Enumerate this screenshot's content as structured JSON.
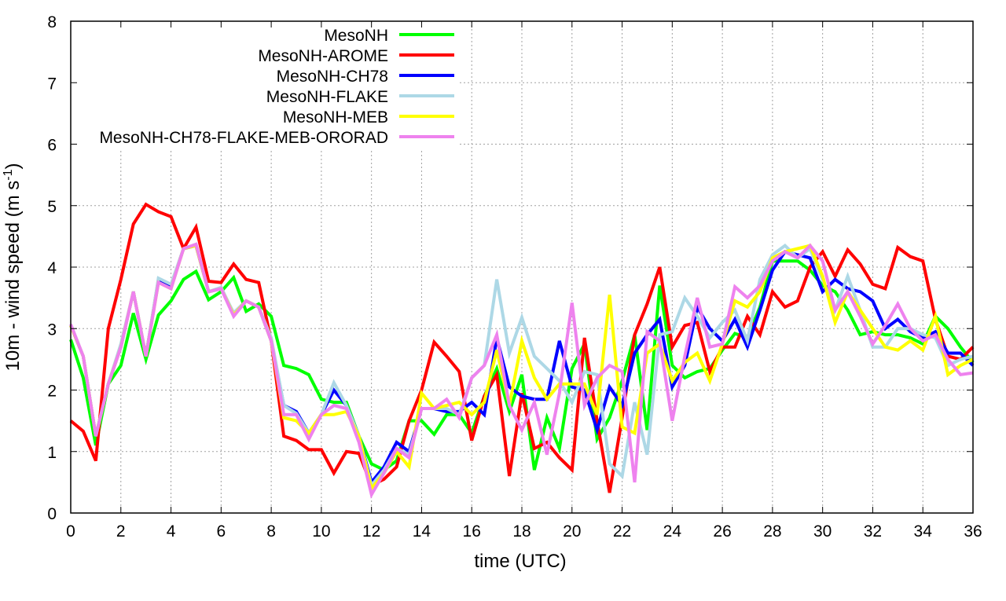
{
  "chart_data": {
    "type": "line",
    "title": "",
    "xlabel": "time (UTC)",
    "ylabel": "10m - wind speed  (m s",
    "ylabel_sup": "-1",
    "ylabel_close": ")",
    "xlim": [
      0,
      36
    ],
    "ylim": [
      0,
      8
    ],
    "xticks": [
      0,
      2,
      4,
      6,
      8,
      10,
      12,
      14,
      16,
      18,
      20,
      22,
      24,
      26,
      28,
      30,
      32,
      34,
      36
    ],
    "yticks": [
      0,
      1,
      2,
      3,
      4,
      5,
      6,
      7,
      8
    ],
    "grid": true,
    "legend_position": "top-left",
    "x_step": 0.5,
    "series": [
      {
        "name": "MesoNH",
        "color": "#00ff00",
        "values": [
          2.82,
          2.2,
          1.1,
          2.1,
          2.4,
          3.25,
          2.5,
          3.22,
          3.45,
          3.8,
          3.93,
          3.47,
          3.6,
          3.83,
          3.28,
          3.4,
          3.2,
          2.4,
          2.35,
          2.25,
          1.85,
          1.8,
          1.8,
          1.25,
          0.8,
          0.7,
          0.85,
          1.5,
          1.5,
          1.28,
          1.6,
          1.6,
          1.3,
          1.9,
          2.35,
          1.65,
          2.25,
          0.7,
          1.55,
          1.05,
          2.35,
          2.75,
          1.2,
          1.55,
          2.15,
          2.9,
          1.35,
          3.7,
          2.4,
          2.2,
          2.3,
          2.35,
          2.65,
          2.92,
          2.85,
          3.35,
          4.1,
          4.1,
          4.1,
          3.95,
          3.7,
          3.6,
          3.3,
          2.9,
          2.95,
          2.9,
          2.9,
          2.85,
          2.75,
          3.2,
          3.0,
          2.7,
          2.45
        ]
      },
      {
        "name": "MesoNH-AROME",
        "color": "#ff0000",
        "values": [
          1.5,
          1.33,
          0.85,
          3.0,
          3.8,
          4.7,
          5.02,
          4.9,
          4.82,
          4.3,
          4.65,
          3.77,
          3.75,
          4.05,
          3.8,
          3.75,
          2.8,
          1.25,
          1.18,
          1.03,
          1.03,
          0.65,
          1.0,
          0.97,
          0.45,
          0.55,
          0.75,
          1.5,
          2.0,
          2.78,
          2.55,
          2.3,
          1.18,
          1.9,
          2.25,
          0.6,
          1.95,
          1.05,
          1.15,
          0.9,
          0.7,
          2.85,
          1.5,
          0.33,
          1.55,
          2.9,
          3.4,
          4.0,
          2.7,
          3.05,
          3.1,
          2.3,
          2.7,
          2.7,
          3.2,
          2.9,
          3.6,
          3.35,
          3.45,
          4.0,
          4.25,
          3.85,
          4.28,
          4.05,
          3.72,
          3.65,
          4.32,
          4.17,
          4.1,
          3.15,
          2.55,
          2.5,
          2.7
        ]
      },
      {
        "name": "MesoNH-CH78",
        "color": "#0000ff",
        "values": [
          3.05,
          2.55,
          1.25,
          2.1,
          2.7,
          3.6,
          2.55,
          3.8,
          3.7,
          4.3,
          4.35,
          3.6,
          3.65,
          3.25,
          3.45,
          3.35,
          2.8,
          1.75,
          1.65,
          1.3,
          1.6,
          2.0,
          1.75,
          1.25,
          0.5,
          0.75,
          1.15,
          1.0,
          1.7,
          1.7,
          1.65,
          1.65,
          1.8,
          1.6,
          2.85,
          2.05,
          1.9,
          1.85,
          1.85,
          2.8,
          2.05,
          2.0,
          1.35,
          2.05,
          1.75,
          2.6,
          2.9,
          3.15,
          2.05,
          2.4,
          3.35,
          3.0,
          2.8,
          3.15,
          2.7,
          3.3,
          3.95,
          4.25,
          4.2,
          4.15,
          3.6,
          3.8,
          3.65,
          3.6,
          3.45,
          3.0,
          3.15,
          2.95,
          2.85,
          2.95,
          2.6,
          2.6,
          2.4
        ]
      },
      {
        "name": "MesoNH-FLAKE",
        "color": "#add8e6",
        "values": [
          3.07,
          2.55,
          1.25,
          2.1,
          2.75,
          3.6,
          2.55,
          3.82,
          3.72,
          4.3,
          4.37,
          3.6,
          3.67,
          3.25,
          3.45,
          3.35,
          2.85,
          1.75,
          1.62,
          1.3,
          1.6,
          2.12,
          1.75,
          1.25,
          0.45,
          0.7,
          1.05,
          0.95,
          1.7,
          1.7,
          1.7,
          1.6,
          2.2,
          2.4,
          3.8,
          2.6,
          3.18,
          2.55,
          2.35,
          2.15,
          1.8,
          2.3,
          2.25,
          0.8,
          0.6,
          1.8,
          0.95,
          2.9,
          2.95,
          3.5,
          3.2,
          2.85,
          3.1,
          3.3,
          2.8,
          3.8,
          4.2,
          4.35,
          4.15,
          4.3,
          3.8,
          3.3,
          3.85,
          3.3,
          2.7,
          2.7,
          3.0,
          3.0,
          2.9,
          2.85,
          2.4,
          2.5,
          2.55
        ]
      },
      {
        "name": "MesoNH-MEB",
        "color": "#ffff00",
        "values": [
          3.05,
          2.55,
          1.25,
          2.1,
          2.7,
          3.6,
          2.55,
          3.75,
          3.65,
          4.3,
          4.35,
          3.6,
          3.65,
          3.22,
          3.45,
          3.35,
          2.8,
          1.55,
          1.5,
          1.3,
          1.6,
          1.6,
          1.65,
          1.25,
          0.4,
          0.65,
          1.0,
          0.75,
          1.95,
          1.7,
          1.75,
          1.8,
          1.6,
          1.8,
          2.65,
          1.75,
          2.8,
          2.2,
          1.85,
          2.1,
          2.1,
          2.1,
          1.6,
          3.55,
          1.4,
          1.3,
          2.6,
          2.75,
          2.15,
          2.45,
          2.6,
          2.15,
          2.75,
          3.45,
          3.35,
          3.6,
          4.15,
          4.25,
          4.3,
          4.35,
          3.85,
          3.1,
          3.6,
          3.3,
          3.0,
          2.7,
          2.65,
          2.8,
          2.65,
          3.2,
          2.25,
          2.4,
          2.5
        ]
      },
      {
        "name": "MesoNH-CH78-FLAKE-MEB-ORORAD",
        "color": "#ee82ee",
        "values": [
          3.07,
          2.55,
          1.25,
          2.1,
          2.7,
          3.6,
          2.55,
          3.75,
          3.65,
          4.3,
          4.37,
          3.6,
          3.65,
          3.2,
          3.45,
          3.35,
          2.8,
          1.6,
          1.6,
          1.2,
          1.6,
          1.75,
          1.7,
          1.15,
          0.3,
          0.65,
          1.05,
          0.9,
          1.7,
          1.7,
          1.85,
          1.55,
          2.2,
          2.4,
          2.9,
          1.75,
          1.35,
          1.8,
          0.95,
          1.95,
          3.42,
          1.75,
          2.2,
          2.4,
          2.3,
          0.5,
          2.95,
          2.8,
          1.5,
          2.55,
          3.5,
          2.7,
          2.75,
          3.68,
          3.5,
          3.7,
          4.1,
          4.25,
          4.15,
          4.35,
          4.1,
          3.3,
          3.6,
          3.2,
          2.75,
          3.05,
          3.4,
          3.0,
          2.8,
          2.9,
          2.5,
          2.25,
          2.28
        ]
      }
    ]
  }
}
